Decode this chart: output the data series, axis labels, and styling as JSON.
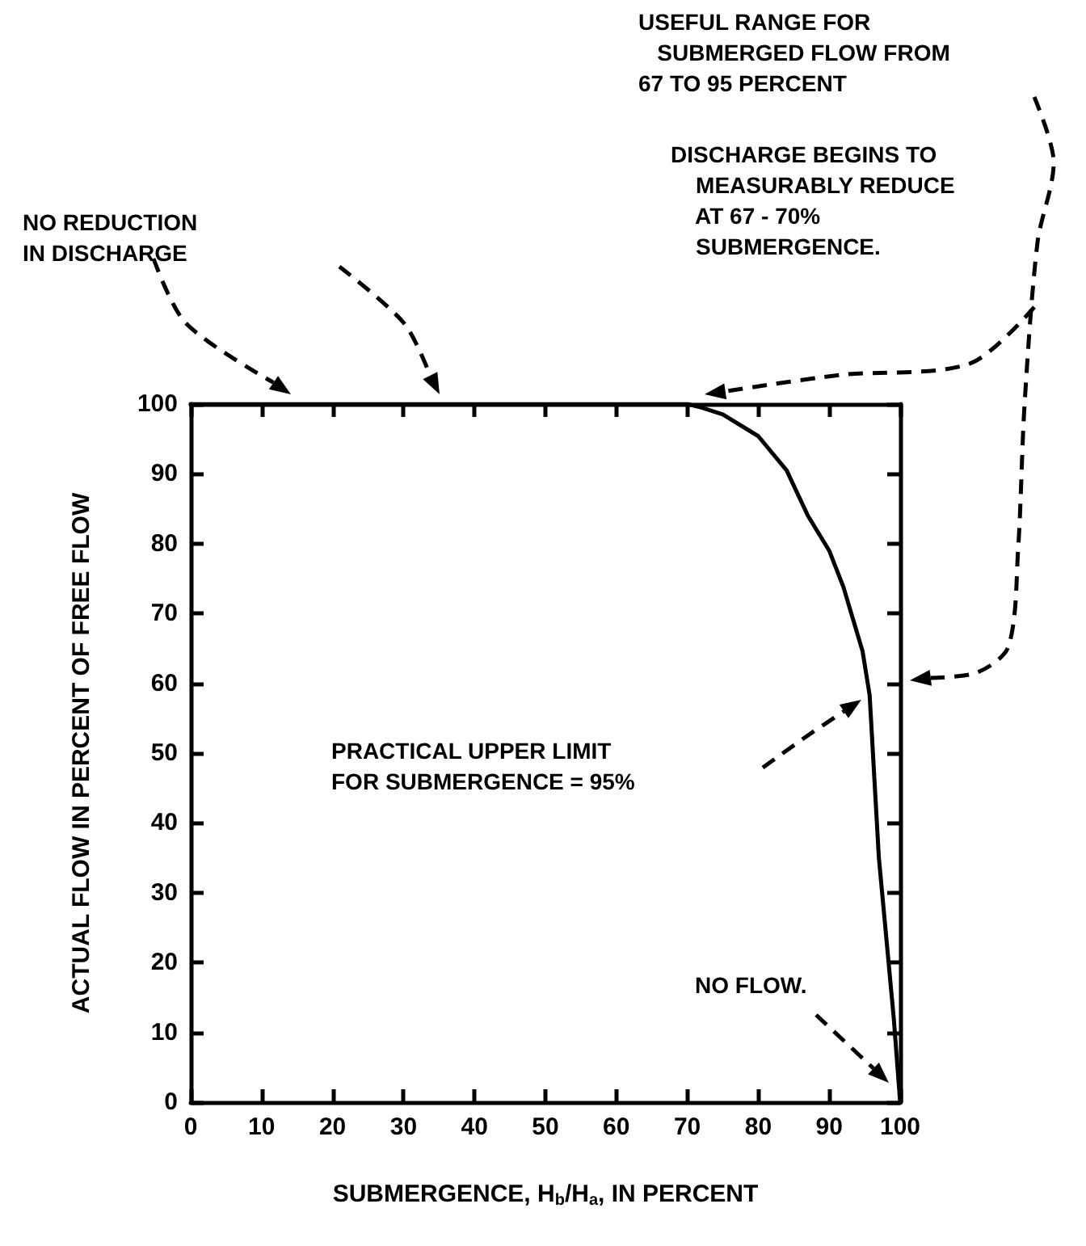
{
  "chart_data": {
    "type": "line",
    "xlabel": "SUBMERGENCE, H$_{b}$/H$_{a}$, IN PERCENT",
    "ylabel": "ACTUAL FLOW IN PERCENT OF FREE FLOW",
    "x": [
      0,
      70,
      72,
      75,
      80,
      84,
      87,
      90,
      92,
      94.7,
      95.7,
      97,
      99.1,
      100
    ],
    "series": [
      {
        "color": "#000000",
        "values": [
          100,
          100,
          99.5,
          98.5,
          95.4,
          90.5,
          84,
          79,
          73.8,
          64.6,
          58.3,
          35,
          12,
          0
        ]
      }
    ],
    "xlim": [
      0,
      100
    ],
    "ylim": [
      0,
      100
    ],
    "xticks": [
      0,
      10,
      20,
      30,
      40,
      50,
      60,
      70,
      80,
      90,
      100
    ],
    "yticks": [
      0,
      10,
      20,
      30,
      40,
      50,
      60,
      70,
      80,
      90,
      100
    ],
    "grid": false,
    "marker": "none",
    "line_style": "solid",
    "annotations": [
      "NO REDUCTION\nIN DISCHARGE",
      "USEFUL RANGE FOR\n   SUBMERGED FLOW FROM\n67 TO 95 PERCENT",
      "DISCHARGE BEGINS TO\n    MEASURABLY REDUCE\n    AT 67 - 70%\n    SUBMERGENCE.",
      "PRACTICAL UPPER LIMIT\nFOR SUBMERGENCE = 95%",
      "NO FLOW."
    ]
  }
}
